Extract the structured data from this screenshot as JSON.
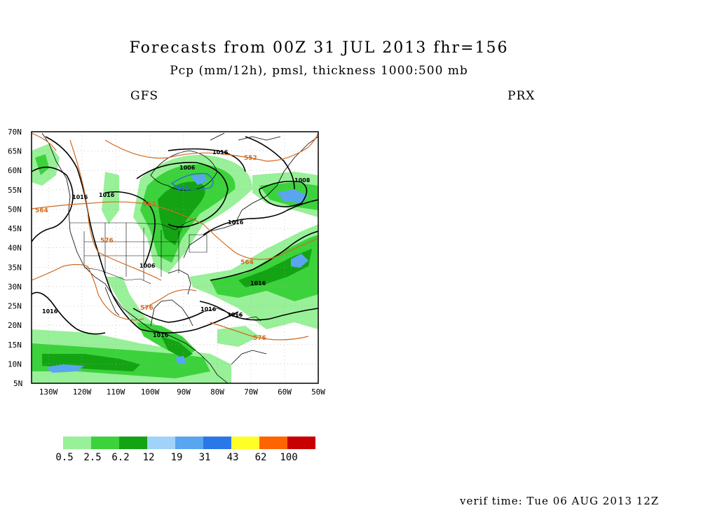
{
  "header": {
    "title": "Forecasts from 00Z 31 JUL 2013   fhr=156",
    "subtitle": "Pcp (mm/12h), pmsl, thickness 1000:500 mb",
    "model": "GFS",
    "station": "PRX"
  },
  "footer": {
    "verif_time": "verif time: Tue 06 AUG 2013 12Z"
  },
  "map": {
    "lat_labels": [
      "70N",
      "65N",
      "60N",
      "55N",
      "50N",
      "45N",
      "40N",
      "35N",
      "30N",
      "25N",
      "20N",
      "15N",
      "10N",
      "5N"
    ],
    "lon_labels": [
      "130W",
      "120W",
      "110W",
      "100W",
      "90W",
      "80W",
      "70W",
      "60W",
      "50W"
    ],
    "lat_range": [
      5,
      70
    ],
    "lon_range": [
      -135,
      -50
    ],
    "isobar_labels": [
      "1016",
      "1016",
      "1016",
      "1006",
      "1006",
      "1016",
      "1016",
      "1016",
      "1016",
      "1016",
      "1016",
      "1008"
    ],
    "thickness_labels": [
      "552",
      "552",
      "564",
      "576",
      "564",
      "576",
      "576"
    ],
    "thickness_blue_labels": [
      "540"
    ],
    "colors": {
      "isobar": "#000000",
      "thickness": "#d2691e",
      "thickness_cold": "#2a6fd6",
      "coast": "#000000"
    }
  },
  "legend": {
    "items": [
      {
        "label": "0.5",
        "color": "#98f098"
      },
      {
        "label": "2.5",
        "color": "#3cd23c"
      },
      {
        "label": "6.2",
        "color": "#13a313"
      },
      {
        "label": "12",
        "color": "#a0d2fa"
      },
      {
        "label": "19",
        "color": "#5aa5f0"
      },
      {
        "label": "31",
        "color": "#2a78e6"
      },
      {
        "label": "43",
        "color": "#ffff28"
      },
      {
        "label": "62",
        "color": "#ff6400"
      },
      {
        "label": "100",
        "color": "#c80000"
      }
    ]
  }
}
